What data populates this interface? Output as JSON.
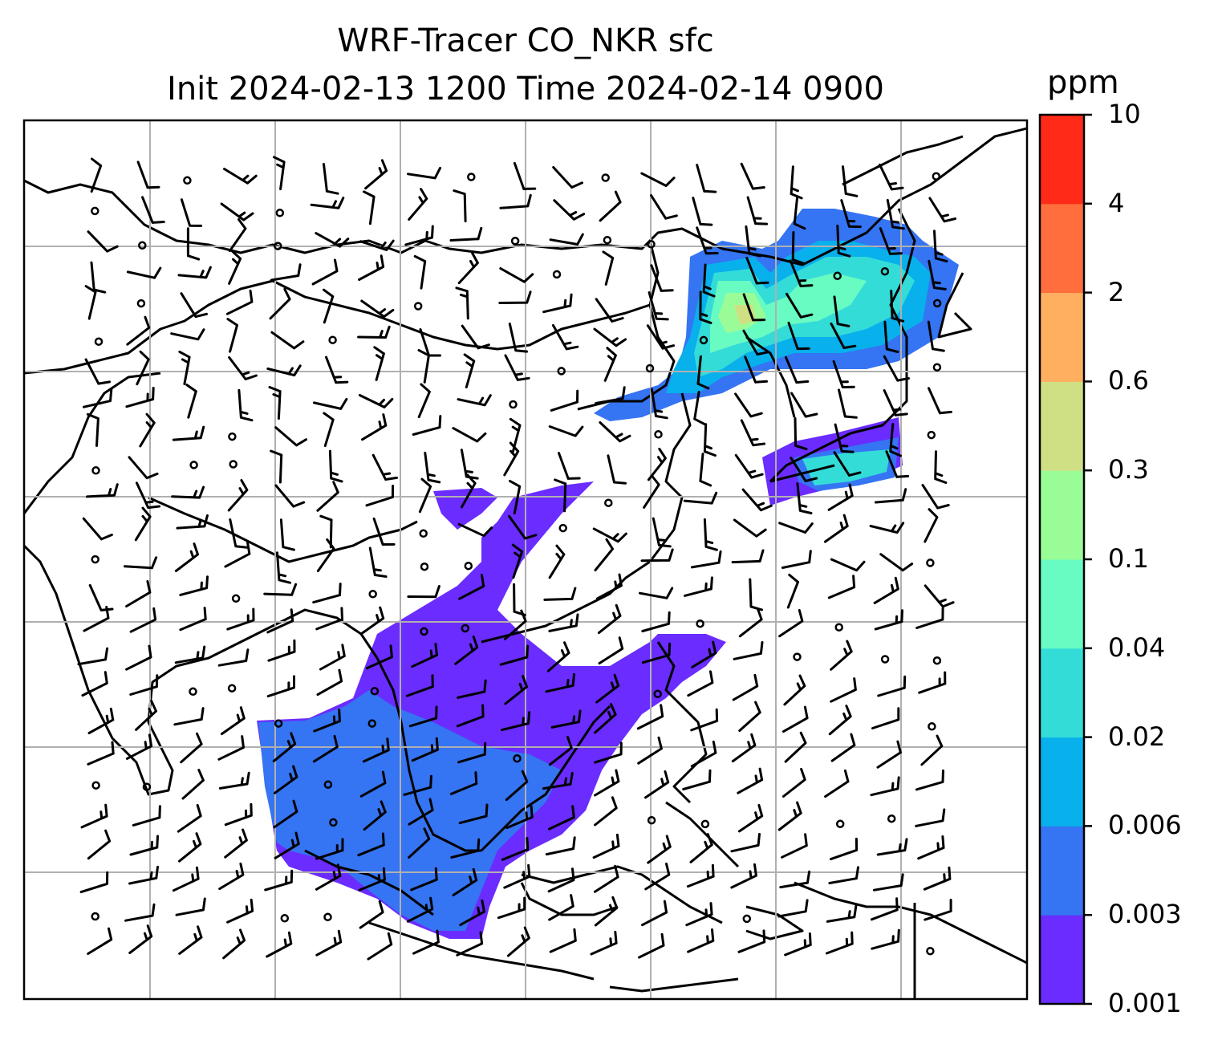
{
  "title": {
    "line1": "WRF-Tracer CO_NKR sfc",
    "line2": "Init 2024-02-13 1200 Time 2024-02-14 0900"
  },
  "colorbar": {
    "unit": "ppm",
    "levels": [
      "0.001",
      "0.003",
      "0.006",
      "0.02",
      "0.04",
      "0.1",
      "0.3",
      "0.6",
      "2",
      "4",
      "10"
    ],
    "colors": [
      "#6a2cff",
      "#3574f2",
      "#08b0ec",
      "#34dcd8",
      "#68fbc2",
      "#99fc97",
      "#cfe084",
      "#ffaf5f",
      "#ff6e3c",
      "#ff2a17"
    ]
  },
  "map": {
    "gridlines": true,
    "content": "CO tracer concentration with surface wind barbs over East and Southeast Asia"
  }
}
